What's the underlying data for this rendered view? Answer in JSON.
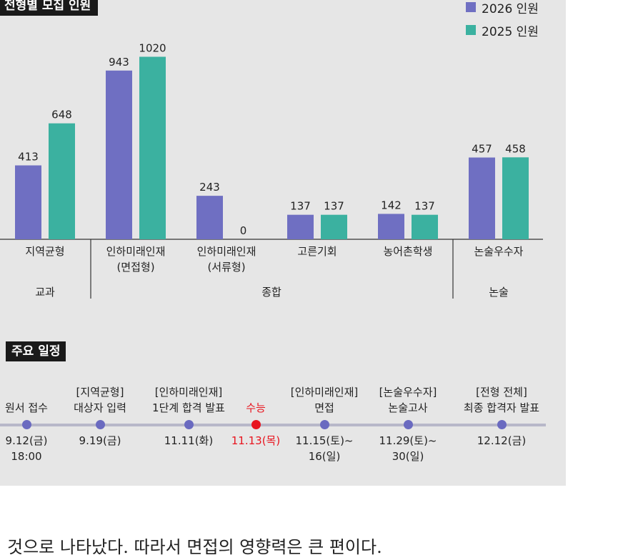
{
  "chart_title": "전형별 모집 인원",
  "colors": {
    "series_2026": "#6f6fc2",
    "series_2025": "#3bb1a0",
    "highlight": "#e8141e",
    "dot": "#6a6ac0"
  },
  "chart_data": {
    "type": "bar",
    "title": "전형별 모집 인원",
    "categories": [
      "지역균형",
      "인하미래인재\n(면접형)",
      "인하미래인재\n(서류형)",
      "고른기회",
      "농어촌학생",
      "논술우수자"
    ],
    "groups": [
      {
        "label": "교과",
        "categories": [
          "지역균형"
        ]
      },
      {
        "label": "종합",
        "categories": [
          "인하미래인재\n(면접형)",
          "인하미래인재\n(서류형)",
          "고른기회",
          "농어촌학생"
        ]
      },
      {
        "label": "논술",
        "categories": [
          "논술우수자"
        ]
      }
    ],
    "series": [
      {
        "name": "2026 인원",
        "values": [
          413,
          943,
          243,
          137,
          142,
          457
        ]
      },
      {
        "name": "2025 인원",
        "values": [
          648,
          1020,
          0,
          137,
          137,
          458
        ]
      }
    ],
    "ylim": [
      0,
      1100
    ],
    "grid": false,
    "legend_position": "top-right"
  },
  "schedule": {
    "title": "주요 일정",
    "events": [
      {
        "label": "원서 접수",
        "date": "9.12(금)\n18:00",
        "highlight": false
      },
      {
        "label": "[지역균형]\n대상자 입력",
        "date": "9.19(금)",
        "highlight": false
      },
      {
        "label": "[인하미래인재]\n1단계 합격 발표",
        "date": "11.11(화)",
        "highlight": false
      },
      {
        "label": "수능",
        "date": "11.13(목)",
        "highlight": true
      },
      {
        "label": "[인하미래인재]\n면접",
        "date": "11.15(토)~\n16(일)",
        "highlight": false
      },
      {
        "label": "[논술우수자]\n논술고사",
        "date": "11.29(토)~\n30(일)",
        "highlight": false
      },
      {
        "label": "[전형 전체]\n최종 합격자 발표",
        "date": "12.12(금)",
        "highlight": false
      }
    ]
  },
  "footer_text": "것으로 나타났다. 따라서 면접의 영향력은 큰 편이다."
}
